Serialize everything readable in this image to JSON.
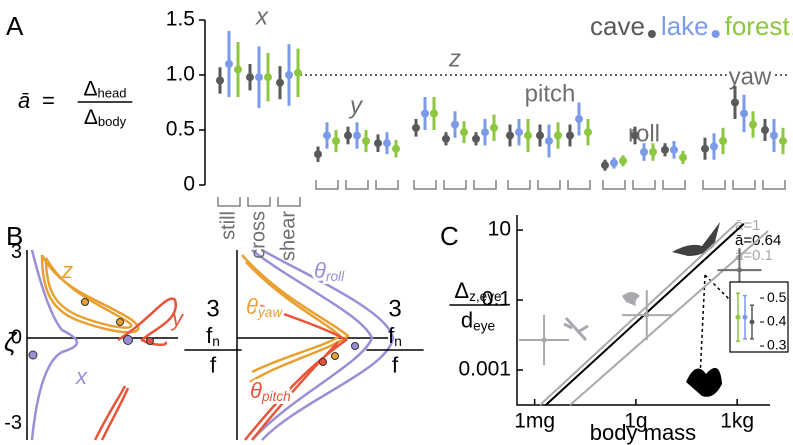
{
  "panel_labels": [
    "A",
    "B",
    "C"
  ],
  "chart_data": [
    {
      "type": "dot-errorbar",
      "equation": {
        "lhs": "ā",
        "equals": "=",
        "num": "Δ",
        "num_sub": "head",
        "den": "Δ",
        "den_sub": "body"
      },
      "ylim": [
        0,
        1.5
      ],
      "yticks": [
        0,
        0.5,
        {
          "value": 1,
          "label": "1.0"
        },
        1.5
      ],
      "reference_line": 1,
      "groups": [
        "x",
        "y",
        "z",
        "pitch",
        "roll",
        "yaw"
      ],
      "categories": [
        "still",
        "cross",
        "shear",
        null,
        null,
        null,
        null,
        null,
        null,
        null,
        null,
        null,
        null,
        null,
        null,
        null,
        null,
        null
      ],
      "series": [
        {
          "name": "cave",
          "color": "#58595b",
          "values": [
            0.95,
            0.98,
            0.93,
            0.28,
            0.45,
            0.38,
            0.52,
            0.42,
            0.42,
            0.45,
            0.45,
            0.45,
            0.18,
            0.45,
            0.32,
            0.33,
            0.75,
            0.5
          ],
          "errors": [
            0.12,
            0.12,
            0.15,
            0.07,
            0.08,
            0.08,
            0.08,
            0.06,
            0.06,
            0.1,
            0.1,
            0.1,
            0.05,
            0.08,
            0.06,
            0.1,
            0.15,
            0.1
          ]
        },
        {
          "name": "lake",
          "color": "#7b9be8",
          "values": [
            1.1,
            0.98,
            1.0,
            0.45,
            0.45,
            0.38,
            0.65,
            0.55,
            0.48,
            0.48,
            0.4,
            0.6,
            0.2,
            0.3,
            0.32,
            0.35,
            0.65,
            0.45
          ],
          "errors": [
            0.3,
            0.28,
            0.28,
            0.12,
            0.12,
            0.1,
            0.15,
            0.12,
            0.12,
            0.12,
            0.15,
            0.15,
            0.05,
            0.08,
            0.08,
            0.12,
            0.17,
            0.15
          ]
        },
        {
          "name": "forest",
          "color": "#8dc63f",
          "values": [
            1.05,
            0.98,
            1.02,
            0.4,
            0.4,
            0.33,
            0.65,
            0.48,
            0.52,
            0.45,
            0.45,
            0.48,
            0.22,
            0.3,
            0.25,
            0.4,
            0.55,
            0.4
          ],
          "errors": [
            0.25,
            0.22,
            0.22,
            0.1,
            0.1,
            0.08,
            0.15,
            0.1,
            0.12,
            0.15,
            0.12,
            0.12,
            0.05,
            0.08,
            0.06,
            0.12,
            0.12,
            0.12
          ]
        }
      ]
    },
    {
      "type": "curves",
      "ylabel": "ζ",
      "yticks": [
        -3,
        0,
        3
      ],
      "xticks": [
        3
      ],
      "xlabel": {
        "num": "f",
        "num_sub": "n",
        "den": "f"
      },
      "left_labels": [
        "z",
        "y",
        "x"
      ],
      "right_labels": [
        {
          "symbol": "θ",
          "sub": "roll"
        },
        {
          "symbol": "θ",
          "sub": "yaw"
        },
        {
          "symbol": "θ",
          "sub": "pitch"
        }
      ]
    },
    {
      "type": "log-scatter",
      "xlim": [
        0.0003,
        9400
      ],
      "ylim": [
        0.0001,
        27
      ],
      "xticks": [
        {
          "value": 0.001,
          "label": "1mg"
        },
        {
          "value": 1,
          "label": "1g"
        },
        {
          "value": 1000,
          "label": "1kg"
        }
      ],
      "yticks": [
        0.001,
        0.1,
        10
      ],
      "xlabel": "body mass",
      "ylabel": {
        "num": "Δ",
        "num_sub": "z,eye",
        "den": "d",
        "den_sub": "eye"
      },
      "x": [
        0.0019,
        2.1,
        1170
      ],
      "y": [
        0.0072,
        0.037,
        0.72
      ],
      "reference_lines": [
        {
          "label": "ā=1",
          "value": 1,
          "color": "#a7a9ac"
        },
        {
          "label": "ā=0.64",
          "value": 0.64,
          "color": "#000000"
        },
        {
          "label": "ā=0.1",
          "value": 0.1,
          "color": "#a7a9ac"
        }
      ],
      "inset": {
        "ylim": [
          0.275,
          0.567
        ],
        "yticks": [
          0.5,
          0.4,
          0.3
        ],
        "series": [
          {
            "color": "#8dc63f",
            "value": 0.42,
            "error": 0.1
          },
          {
            "color": "#7b9be8",
            "value": 0.42,
            "error": 0.09
          },
          {
            "color": "#58595b",
            "value": 0.4,
            "error": 0.07
          }
        ]
      }
    }
  ]
}
